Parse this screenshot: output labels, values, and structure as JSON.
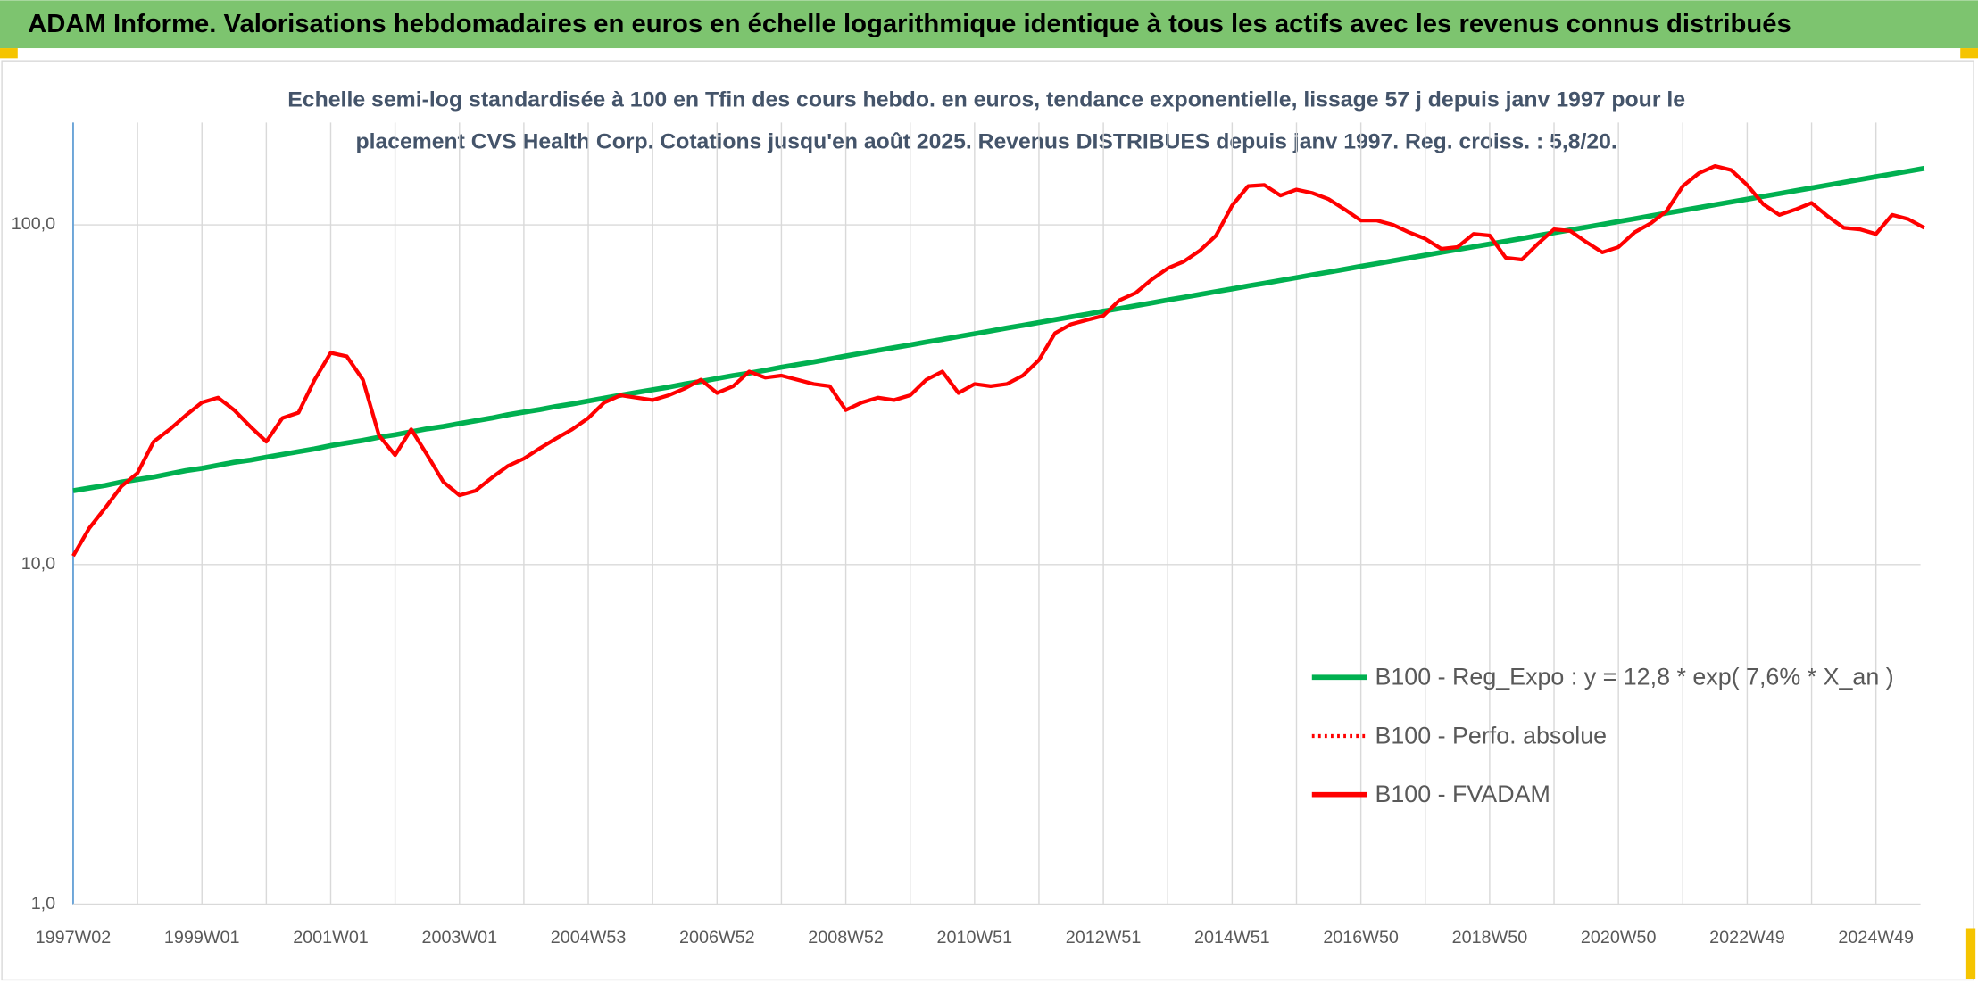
{
  "chart_data": {
    "type": "line",
    "title": "ADAM Informe. Valorisations hebdomadaires en euros en échelle logarithmique identique à tous les actifs avec les revenus connus distribués",
    "subtitle": [
      "Echelle semi-log standardisée à 100 en Tfin des cours hebdo. en euros, tendance exponentielle, lissage 57 j depuis janv 1997 pour le",
      "placement CVS Health Corp. Cotations jusqu'en août 2025. Revenus DISTRIBUES depuis janv 1997. Reg. croiss. : 5,8/20."
    ],
    "log_scale": true,
    "grid": true,
    "legend": "right",
    "ylim": [
      1,
      200
    ],
    "yticks": [
      {
        "value": 1,
        "label": "1,0"
      },
      {
        "value": 10,
        "label": "10,0"
      },
      {
        "value": 100,
        "label": "100,0"
      }
    ],
    "categories": [
      "1997W02",
      null,
      null,
      null,
      null,
      null,
      null,
      null,
      "1999W01",
      null,
      null,
      null,
      null,
      null,
      null,
      null,
      "2001W01",
      null,
      null,
      null,
      null,
      null,
      null,
      null,
      "2003W01",
      null,
      null,
      null,
      null,
      null,
      null,
      null,
      "2004W53",
      null,
      null,
      null,
      null,
      null,
      null,
      null,
      "2006W52",
      null,
      null,
      null,
      null,
      null,
      null,
      null,
      "2008W52",
      null,
      null,
      null,
      null,
      null,
      null,
      null,
      "2010W51",
      null,
      null,
      null,
      null,
      null,
      null,
      null,
      "2012W51",
      null,
      null,
      null,
      null,
      null,
      null,
      null,
      "2014W51",
      null,
      null,
      null,
      null,
      null,
      null,
      null,
      "2016W50",
      null,
      null,
      null,
      null,
      null,
      null,
      null,
      "2018W50",
      null,
      null,
      null,
      null,
      null,
      null,
      null,
      "2020W50",
      null,
      null,
      null,
      null,
      null,
      null,
      null,
      "2022W49",
      null,
      null,
      null,
      null,
      null,
      null,
      null,
      "2024W49",
      null,
      null,
      null
    ],
    "series": [
      {
        "name": "B100 - Reg_Expo : y = 12,8 * exp( 7,6% *  X_an )",
        "color": "#00b050",
        "dash": "solid",
        "values": [
          16.5,
          16.8,
          17.1,
          17.5,
          17.8,
          18.1,
          18.5,
          18.9,
          19.2,
          19.6,
          20.0,
          20.3,
          20.7,
          21.1,
          21.5,
          21.9,
          22.4,
          22.8,
          23.2,
          23.7,
          24.1,
          24.6,
          25.1,
          25.5,
          26.0,
          26.5,
          27.0,
          27.6,
          28.1,
          28.6,
          29.2,
          29.7,
          30.3,
          30.9,
          31.5,
          32.1,
          32.7,
          33.3,
          34.0,
          34.6,
          35.3,
          36.0,
          36.6,
          37.3,
          38.1,
          38.8,
          39.5,
          40.3,
          41.1,
          41.9,
          42.7,
          43.5,
          44.3,
          45.2,
          46.0,
          46.9,
          47.8,
          48.7,
          49.7,
          50.6,
          51.6,
          52.6,
          53.6,
          54.6,
          55.7,
          56.7,
          57.8,
          58.9,
          60.1,
          61.2,
          62.4,
          63.6,
          64.8,
          66.1,
          67.3,
          68.6,
          69.9,
          71.3,
          72.6,
          74.0,
          75.5,
          76.9,
          78.4,
          79.9,
          81.4,
          83.0,
          84.6,
          86.2,
          87.8,
          89.5,
          91.2,
          93.0,
          94.8,
          96.6,
          98.4,
          100.3,
          102.3,
          104.2,
          106.2,
          108.3,
          110.3,
          112.4,
          114.6,
          116.8,
          119.0,
          121.3,
          123.6,
          126.0,
          128.4,
          130.9,
          133.4,
          136.0,
          138.6,
          141.2,
          143.9,
          146.7
        ]
      },
      {
        "name": "B100 - Perfo. absolue",
        "color": "#ff0000",
        "dash": "dotted",
        "values": [
          null,
          null,
          null,
          null,
          null,
          null,
          null,
          null,
          null,
          null,
          null,
          null,
          null,
          null,
          null,
          null,
          null,
          null,
          null,
          null,
          null,
          null,
          null,
          null,
          null,
          null,
          null,
          null,
          null,
          null,
          null,
          null,
          null,
          null,
          null,
          null,
          null,
          null,
          null,
          null,
          null,
          null,
          null,
          null,
          null,
          null,
          null,
          null,
          null,
          null,
          null,
          null,
          null,
          null,
          null,
          null,
          null,
          null,
          null,
          null,
          null,
          null,
          null,
          null,
          null,
          null,
          null,
          null,
          null,
          null,
          null,
          null,
          null,
          null,
          null,
          null,
          null,
          null,
          null,
          null,
          null,
          null,
          null,
          null,
          null,
          null,
          null,
          null,
          null,
          null,
          null,
          null,
          null,
          null,
          null,
          null,
          null,
          null,
          null,
          null,
          null,
          null,
          null,
          null,
          null,
          null,
          null,
          null,
          null,
          null,
          null,
          null,
          null,
          null,
          null,
          null
        ]
      },
      {
        "name": "B100 - FVADAM",
        "color": "#ff0000",
        "dash": "solid",
        "values": [
          10.6,
          12.8,
          14.7,
          17,
          18.6,
          23,
          25,
          27.5,
          30,
          31,
          28.5,
          25.5,
          23,
          27,
          28,
          35,
          42,
          41,
          35,
          24,
          21,
          25,
          21,
          17.5,
          16,
          16.5,
          18,
          19.5,
          20.5,
          22,
          23.5,
          25,
          27,
          30,
          31.5,
          31,
          30.5,
          31.5,
          33,
          35,
          32,
          33.5,
          37,
          35.5,
          36,
          35,
          34,
          33.5,
          28.5,
          30,
          31,
          30.5,
          31.5,
          35,
          37,
          32,
          34,
          33.5,
          34,
          36,
          40,
          48,
          51,
          52.5,
          54,
          60,
          63,
          69,
          74.5,
          78,
          84,
          93,
          114,
          130,
          131,
          122,
          127,
          124,
          119,
          111,
          103,
          103,
          100,
          95,
          91,
          85,
          86,
          94,
          93,
          80,
          79,
          88,
          97,
          96,
          89,
          83,
          86,
          95,
          101,
          110,
          130,
          142,
          149,
          145,
          131,
          115,
          107,
          111,
          116,
          106,
          98,
          97,
          94,
          107,
          104,
          98
        ]
      }
    ]
  }
}
